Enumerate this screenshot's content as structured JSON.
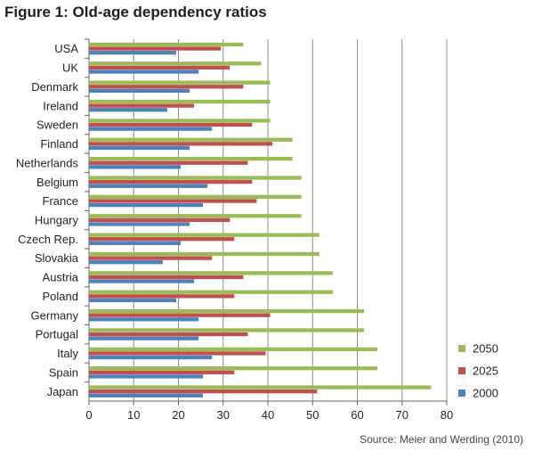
{
  "figure": {
    "title": "Figure 1: Old-age dependency ratios",
    "source": "Source: Meier and Werding (2010)"
  },
  "chart_data": {
    "type": "bar",
    "orientation": "horizontal",
    "title": "Figure 1: Old-age dependency ratios",
    "categories": [
      "USA",
      "UK",
      "Denmark",
      "Ireland",
      "Sweden",
      "Finland",
      "Netherlands",
      "Belgium",
      "France",
      "Hungary",
      "Czech Rep.",
      "Slovakia",
      "Austria",
      "Poland",
      "Germany",
      "Portugal",
      "Italy",
      "Spain",
      "Japan"
    ],
    "series": [
      {
        "name": "2050",
        "color": "#9bbb59",
        "values": [
          34.5,
          38.5,
          40.5,
          40.5,
          40.5,
          45.5,
          45.5,
          47.5,
          47.5,
          47.5,
          51.5,
          51.5,
          54.5,
          54.5,
          61.5,
          61.5,
          64.5,
          64.5,
          76.5
        ]
      },
      {
        "name": "2025",
        "color": "#c0504d",
        "values": [
          29.5,
          31.5,
          34.5,
          23.5,
          36.5,
          41.0,
          35.5,
          36.5,
          37.5,
          31.5,
          32.5,
          27.5,
          34.5,
          32.5,
          40.5,
          35.5,
          39.5,
          32.5,
          51.0
        ]
      },
      {
        "name": "2000",
        "color": "#4f81bd",
        "values": [
          19.5,
          24.5,
          22.5,
          17.5,
          27.5,
          22.5,
          20.5,
          26.5,
          25.5,
          22.5,
          20.5,
          16.5,
          23.5,
          19.5,
          24.5,
          24.5,
          27.5,
          25.5,
          25.5
        ]
      }
    ],
    "xlim": [
      0,
      80
    ],
    "x_ticks": [
      "0",
      "10",
      "20",
      "30",
      "40",
      "50",
      "60",
      "70",
      "80"
    ],
    "grid": true,
    "legend_placement": "bottom-right",
    "legend_order": [
      "2050",
      "2025",
      "2000"
    ],
    "xlabel": "",
    "ylabel": ""
  }
}
